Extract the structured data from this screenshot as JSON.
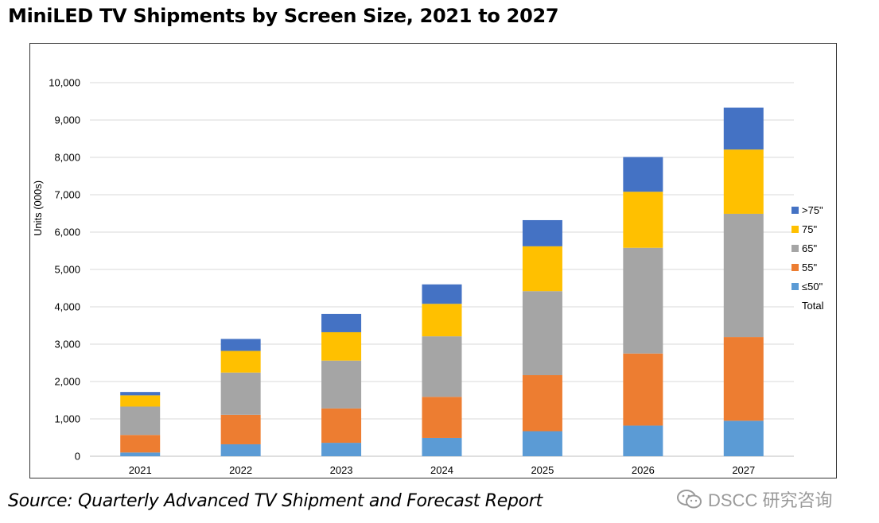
{
  "title": "MiniLED TV Shipments by Screen Size, 2021 to 2027",
  "source": "Source: Quarterly Advanced TV Shipment and Forecast Report",
  "watermark": "DSCC 研究咨询",
  "chart_data": {
    "type": "bar",
    "stacked": true,
    "categories": [
      "2021",
      "2022",
      "2023",
      "2024",
      "2025",
      "2026",
      "2027"
    ],
    "series": [
      {
        "name": "≤50\"",
        "color": "#5b9bd5",
        "values": [
          100,
          320,
          360,
          490,
          670,
          820,
          950
        ]
      },
      {
        "name": "55\"",
        "color": "#ed7d31",
        "values": [
          470,
          790,
          920,
          1100,
          1500,
          1930,
          2240
        ]
      },
      {
        "name": "65\"",
        "color": "#a5a5a5",
        "values": [
          760,
          1130,
          1280,
          1620,
          2250,
          2830,
          3300
        ]
      },
      {
        "name": "75\"",
        "color": "#ffc000",
        "values": [
          300,
          580,
          760,
          870,
          1200,
          1500,
          1720
        ]
      },
      {
        "name": ">75\"",
        "color": "#4472c4",
        "values": [
          90,
          320,
          490,
          520,
          700,
          930,
          1120
        ]
      }
    ],
    "totals_series_name": "Total",
    "ylabel": "Units (000s)",
    "xlabel": "",
    "ylim": [
      0,
      10000
    ],
    "yticks": [
      0,
      1000,
      2000,
      3000,
      4000,
      5000,
      6000,
      7000,
      8000,
      9000,
      10000
    ],
    "ytick_labels": [
      "0",
      "1,000",
      "2,000",
      "3,000",
      "4,000",
      "5,000",
      "6,000",
      "7,000",
      "8,000",
      "9,000",
      "10,000"
    ],
    "grid": true,
    "legend_position": "right",
    "legend_order": [
      ">75\"",
      "75\"",
      "65\"",
      "55\"",
      "≤50\"",
      "Total"
    ]
  }
}
